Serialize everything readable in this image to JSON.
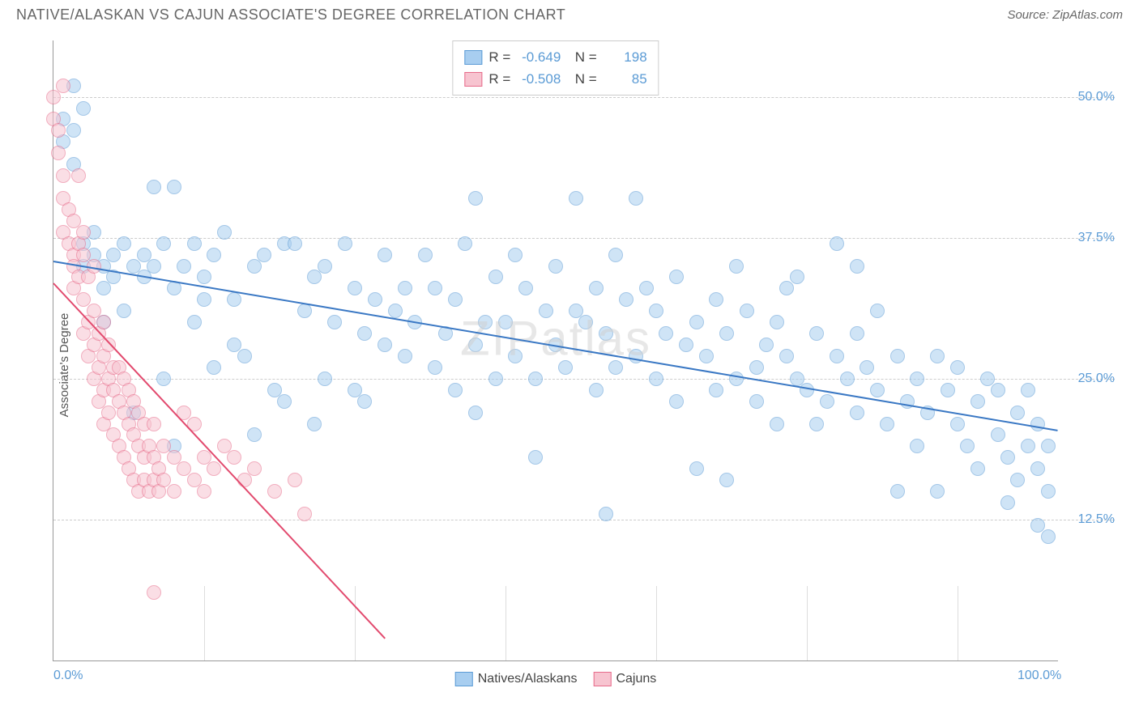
{
  "title": "NATIVE/ALASKAN VS CAJUN ASSOCIATE'S DEGREE CORRELATION CHART",
  "source_label": "Source: ZipAtlas.com",
  "ylabel": "Associate's Degree",
  "watermark": "ZIPatlas",
  "chart": {
    "type": "scatter",
    "xlim": [
      0,
      100
    ],
    "ylim": [
      0,
      55
    ],
    "x_ticks": [
      0,
      100
    ],
    "x_tick_labels": [
      "0.0%",
      "100.0%"
    ],
    "x_minor_ticks": [
      15,
      30,
      45,
      60,
      75,
      90
    ],
    "y_ticks": [
      12.5,
      25.0,
      37.5,
      50.0
    ],
    "y_tick_labels": [
      "12.5%",
      "25.0%",
      "37.5%",
      "50.0%"
    ],
    "background_color": "#ffffff",
    "grid_color": "#cccccc",
    "axis_color": "#999999",
    "tick_label_color": "#5b9bd5",
    "point_radius": 9,
    "point_opacity": 0.55
  },
  "series": [
    {
      "name": "Natives/Alaskans",
      "color_fill": "#a8cef0",
      "color_stroke": "#5b9bd5",
      "R": "-0.649",
      "N": "198",
      "trend": {
        "x1": 0,
        "y1": 35.5,
        "x2": 100,
        "y2": 20.5,
        "color": "#3a78c4",
        "width": 2
      },
      "points": [
        [
          1,
          48
        ],
        [
          1,
          46
        ],
        [
          2,
          47
        ],
        [
          2,
          44
        ],
        [
          3,
          37
        ],
        [
          3,
          35
        ],
        [
          4,
          36
        ],
        [
          4,
          38
        ],
        [
          5,
          33
        ],
        [
          5,
          35
        ],
        [
          6,
          34
        ],
        [
          6,
          36
        ],
        [
          7,
          31
        ],
        [
          7,
          37
        ],
        [
          8,
          35
        ],
        [
          8,
          22
        ],
        [
          9,
          34
        ],
        [
          9,
          36
        ],
        [
          10,
          35
        ],
        [
          10,
          42
        ],
        [
          11,
          37
        ],
        [
          12,
          33
        ],
        [
          12,
          42
        ],
        [
          13,
          35
        ],
        [
          14,
          30
        ],
        [
          14,
          37
        ],
        [
          15,
          32
        ],
        [
          15,
          34
        ],
        [
          16,
          26
        ],
        [
          16,
          36
        ],
        [
          18,
          32
        ],
        [
          18,
          28
        ],
        [
          19,
          27
        ],
        [
          20,
          35
        ],
        [
          20,
          20
        ],
        [
          21,
          36
        ],
        [
          22,
          24
        ],
        [
          23,
          23
        ],
        [
          23,
          37
        ],
        [
          24,
          37
        ],
        [
          25,
          31
        ],
        [
          26,
          34
        ],
        [
          27,
          35
        ],
        [
          27,
          25
        ],
        [
          28,
          30
        ],
        [
          29,
          37
        ],
        [
          30,
          24
        ],
        [
          30,
          33
        ],
        [
          31,
          29
        ],
        [
          32,
          32
        ],
        [
          33,
          36
        ],
        [
          33,
          28
        ],
        [
          34,
          31
        ],
        [
          35,
          27
        ],
        [
          35,
          33
        ],
        [
          36,
          30
        ],
        [
          37,
          36
        ],
        [
          38,
          26
        ],
        [
          38,
          33
        ],
        [
          39,
          29
        ],
        [
          40,
          24
        ],
        [
          40,
          32
        ],
        [
          41,
          37
        ],
        [
          42,
          28
        ],
        [
          42,
          41
        ],
        [
          43,
          30
        ],
        [
          44,
          34
        ],
        [
          44,
          25
        ],
        [
          45,
          30
        ],
        [
          46,
          36
        ],
        [
          46,
          27
        ],
        [
          47,
          33
        ],
        [
          48,
          25
        ],
        [
          48,
          18
        ],
        [
          49,
          31
        ],
        [
          50,
          35
        ],
        [
          50,
          28
        ],
        [
          51,
          26
        ],
        [
          52,
          31
        ],
        [
          52,
          41
        ],
        [
          53,
          30
        ],
        [
          54,
          24
        ],
        [
          54,
          33
        ],
        [
          55,
          29
        ],
        [
          56,
          36
        ],
        [
          56,
          26
        ],
        [
          57,
          32
        ],
        [
          58,
          27
        ],
        [
          58,
          41
        ],
        [
          59,
          33
        ],
        [
          60,
          25
        ],
        [
          60,
          31
        ],
        [
          61,
          29
        ],
        [
          62,
          34
        ],
        [
          62,
          23
        ],
        [
          63,
          28
        ],
        [
          64,
          30
        ],
        [
          64,
          17
        ],
        [
          65,
          27
        ],
        [
          66,
          32
        ],
        [
          66,
          24
        ],
        [
          67,
          29
        ],
        [
          68,
          25
        ],
        [
          68,
          35
        ],
        [
          69,
          31
        ],
        [
          70,
          26
        ],
        [
          70,
          23
        ],
        [
          71,
          28
        ],
        [
          72,
          30
        ],
        [
          72,
          21
        ],
        [
          73,
          27
        ],
        [
          74,
          25
        ],
        [
          74,
          34
        ],
        [
          75,
          24
        ],
        [
          76,
          29
        ],
        [
          76,
          21
        ],
        [
          77,
          23
        ],
        [
          78,
          27
        ],
        [
          78,
          37
        ],
        [
          79,
          25
        ],
        [
          80,
          22
        ],
        [
          80,
          29
        ],
        [
          81,
          26
        ],
        [
          82,
          24
        ],
        [
          82,
          31
        ],
        [
          83,
          21
        ],
        [
          84,
          27
        ],
        [
          84,
          15
        ],
        [
          85,
          23
        ],
        [
          86,
          25
        ],
        [
          86,
          19
        ],
        [
          87,
          22
        ],
        [
          88,
          27
        ],
        [
          88,
          15
        ],
        [
          89,
          24
        ],
        [
          90,
          21
        ],
        [
          90,
          26
        ],
        [
          91,
          19
        ],
        [
          92,
          23
        ],
        [
          92,
          17
        ],
        [
          93,
          25
        ],
        [
          94,
          20
        ],
        [
          94,
          24
        ],
        [
          95,
          18
        ],
        [
          95,
          14
        ],
        [
          96,
          22
        ],
        [
          96,
          16
        ],
        [
          97,
          19
        ],
        [
          97,
          24
        ],
        [
          98,
          17
        ],
        [
          98,
          21
        ],
        [
          98,
          12
        ],
        [
          99,
          15
        ],
        [
          99,
          19
        ],
        [
          99,
          11
        ],
        [
          2,
          51
        ],
        [
          3,
          49
        ],
        [
          5,
          30
        ],
        [
          11,
          25
        ],
        [
          17,
          38
        ],
        [
          26,
          21
        ],
        [
          31,
          23
        ],
        [
          42,
          22
        ],
        [
          55,
          13
        ],
        [
          12,
          19
        ],
        [
          67,
          16
        ],
        [
          73,
          33
        ],
        [
          80,
          35
        ]
      ]
    },
    {
      "name": "Cajuns",
      "color_fill": "#f7c4d0",
      "color_stroke": "#e76b8a",
      "R": "-0.508",
      "N": "85",
      "trend": {
        "x1": 0,
        "y1": 33.5,
        "x2": 33,
        "y2": 2,
        "color": "#e24a6e",
        "width": 2
      },
      "points": [
        [
          0,
          50
        ],
        [
          0,
          48
        ],
        [
          0.5,
          47
        ],
        [
          0.5,
          45
        ],
        [
          1,
          43
        ],
        [
          1,
          41
        ],
        [
          1,
          38
        ],
        [
          1.5,
          37
        ],
        [
          1.5,
          40
        ],
        [
          2,
          36
        ],
        [
          2,
          39
        ],
        [
          2,
          35
        ],
        [
          2,
          33
        ],
        [
          2.5,
          37
        ],
        [
          2.5,
          34
        ],
        [
          2.5,
          43
        ],
        [
          3,
          32
        ],
        [
          3,
          36
        ],
        [
          3,
          29
        ],
        [
          3,
          38
        ],
        [
          3.5,
          30
        ],
        [
          3.5,
          34
        ],
        [
          3.5,
          27
        ],
        [
          4,
          31
        ],
        [
          4,
          28
        ],
        [
          4,
          25
        ],
        [
          4,
          35
        ],
        [
          4.5,
          26
        ],
        [
          4.5,
          29
        ],
        [
          4.5,
          23
        ],
        [
          5,
          27
        ],
        [
          5,
          24
        ],
        [
          5,
          30
        ],
        [
          5,
          21
        ],
        [
          5.5,
          25
        ],
        [
          5.5,
          22
        ],
        [
          5.5,
          28
        ],
        [
          6,
          24
        ],
        [
          6,
          26
        ],
        [
          6,
          20
        ],
        [
          6.5,
          23
        ],
        [
          6.5,
          19
        ],
        [
          6.5,
          26
        ],
        [
          7,
          22
        ],
        [
          7,
          18
        ],
        [
          7,
          25
        ],
        [
          7.5,
          21
        ],
        [
          7.5,
          17
        ],
        [
          7.5,
          24
        ],
        [
          8,
          20
        ],
        [
          8,
          23
        ],
        [
          8,
          16
        ],
        [
          8.5,
          19
        ],
        [
          8.5,
          22
        ],
        [
          8.5,
          15
        ],
        [
          9,
          18
        ],
        [
          9,
          21
        ],
        [
          9,
          16
        ],
        [
          9.5,
          19
        ],
        [
          9.5,
          15
        ],
        [
          10,
          18
        ],
        [
          10,
          16
        ],
        [
          10,
          21
        ],
        [
          10.5,
          17
        ],
        [
          10.5,
          15
        ],
        [
          11,
          19
        ],
        [
          11,
          16
        ],
        [
          12,
          18
        ],
        [
          12,
          15
        ],
        [
          13,
          22
        ],
        [
          13,
          17
        ],
        [
          14,
          16
        ],
        [
          14,
          21
        ],
        [
          15,
          18
        ],
        [
          15,
          15
        ],
        [
          16,
          17
        ],
        [
          17,
          19
        ],
        [
          18,
          18
        ],
        [
          19,
          16
        ],
        [
          20,
          17
        ],
        [
          22,
          15
        ],
        [
          24,
          16
        ],
        [
          25,
          13
        ],
        [
          10,
          6
        ],
        [
          1,
          51
        ]
      ]
    }
  ],
  "legend": {
    "items": [
      {
        "label": "Natives/Alaskans",
        "fill": "#a8cef0",
        "stroke": "#5b9bd5"
      },
      {
        "label": "Cajuns",
        "fill": "#f7c4d0",
        "stroke": "#e76b8a"
      }
    ]
  }
}
